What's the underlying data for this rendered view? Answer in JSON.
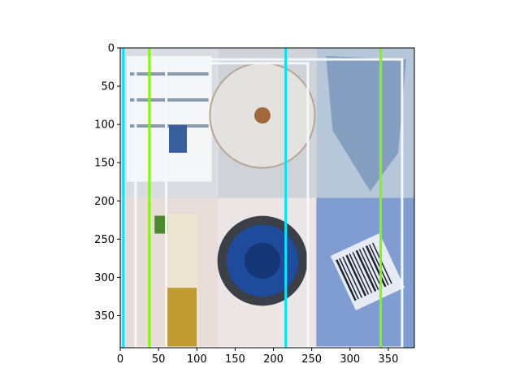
{
  "chart_data": {
    "type": "image",
    "title": "",
    "xlabel": "",
    "ylabel": "",
    "image_size": {
      "width": 384,
      "height": 392
    },
    "xlim": [
      0,
      384
    ],
    "ylim": [
      392,
      0
    ],
    "x_ticks": [
      0,
      50,
      100,
      150,
      200,
      250,
      300,
      350
    ],
    "y_ticks": [
      0,
      50,
      100,
      150,
      200,
      250,
      300,
      350
    ],
    "grid": false,
    "tiles": [
      {
        "name": "shelf-photo",
        "col": 0,
        "row": 0,
        "color": "#d9dde2",
        "accent": "#3a5fa0"
      },
      {
        "name": "plastic-bottle-top",
        "col": 1,
        "row": 0,
        "color": "#cfd3d8",
        "accent": "#a0683c"
      },
      {
        "name": "crumpled-paper",
        "col": 2,
        "row": 0,
        "color": "#b6c7d9",
        "accent": "#6f8fb4"
      },
      {
        "name": "oil-bottle",
        "col": 0,
        "row": 1,
        "color": "#e7dcd8",
        "accent": "#c29a32"
      },
      {
        "name": "blue-cap",
        "col": 1,
        "row": 1,
        "color": "#ece5e6",
        "accent": "#1e4b9c"
      },
      {
        "name": "barcode-label",
        "col": 2,
        "row": 1,
        "color": "#7f9dd0",
        "accent": "#1c2433"
      }
    ],
    "boxes": [
      {
        "x0": 20,
        "y0": 20,
        "x1": 245,
        "y1": 392,
        "color": "#f2f8fb"
      },
      {
        "x0": 60,
        "y0": 15,
        "x1": 368,
        "y1": 392,
        "color": "#f2f8fb"
      }
    ],
    "vlines": [
      {
        "x": 4,
        "color": "#00e5ff"
      },
      {
        "x": 38,
        "color": "#7cfc00"
      },
      {
        "x": 216,
        "color": "#00e5ff"
      },
      {
        "x": 340,
        "color": "#7cfc00"
      }
    ]
  }
}
